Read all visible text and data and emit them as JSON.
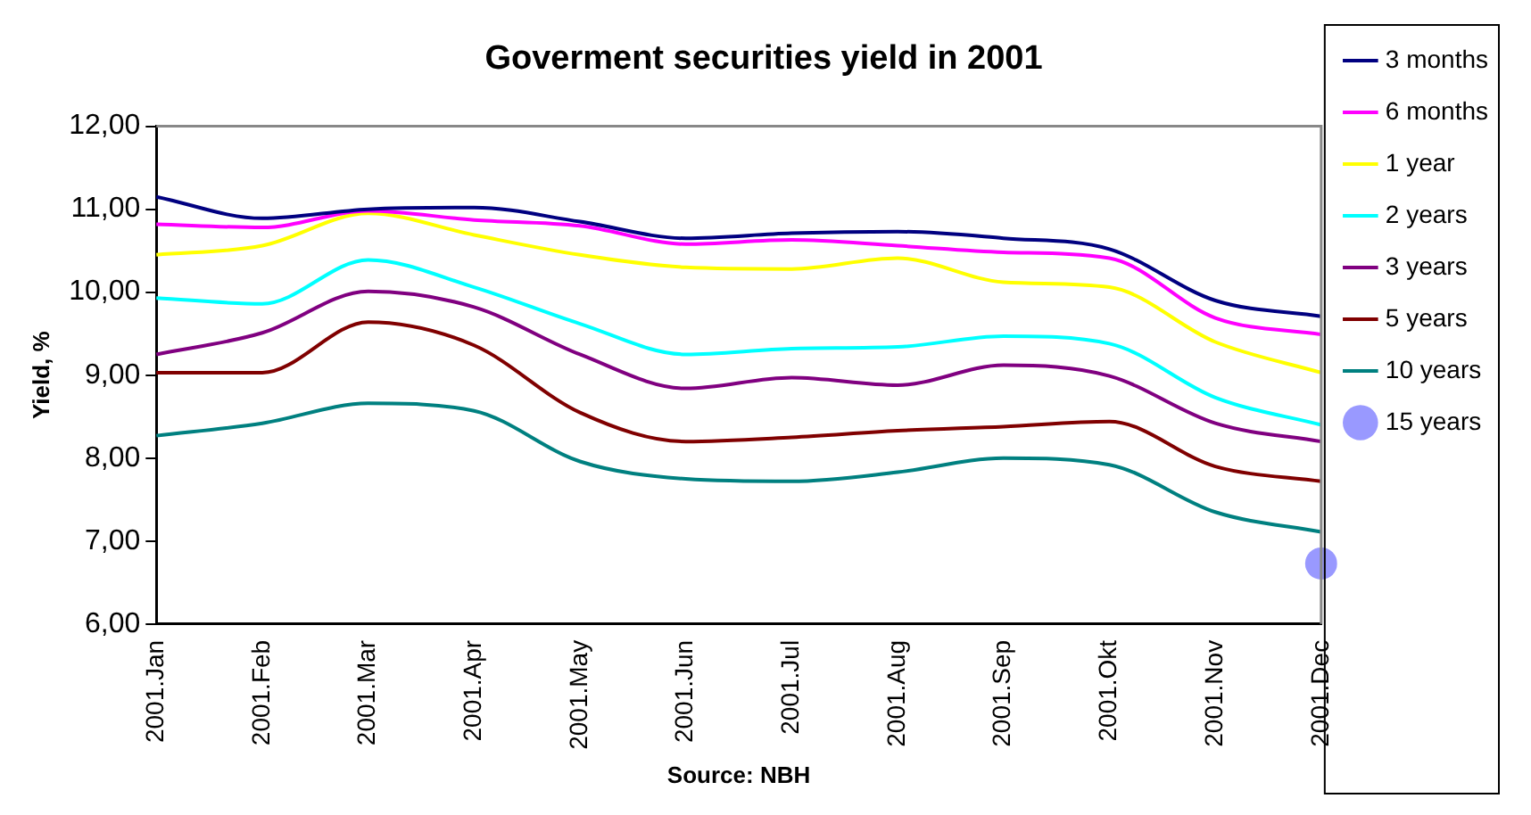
{
  "chart_data": {
    "type": "line",
    "title": "Goverment securities yield in 2001",
    "ylabel": "Yield, %",
    "annotations": [
      "Source: NBH"
    ],
    "categories": [
      "2001.Jan",
      "2001.Feb",
      "2001.Mar",
      "2001.Apr",
      "2001.May",
      "2001.Jun",
      "2001.Jul",
      "2001.Aug",
      "2001.Sep",
      "2001.Okt",
      "2001.Nov",
      "2001.Dec"
    ],
    "ylim": [
      6,
      12
    ],
    "yticks": [
      {
        "value": 6,
        "label": "6,00"
      },
      {
        "value": 7,
        "label": "7,00"
      },
      {
        "value": 8,
        "label": "8,00"
      },
      {
        "value": 9,
        "label": "9,00"
      },
      {
        "value": 10,
        "label": "10,00"
      },
      {
        "value": 11,
        "label": "11,00"
      },
      {
        "value": 12,
        "label": "12,00"
      }
    ],
    "grid": false,
    "legend": "right",
    "series": [
      {
        "name": "3 months",
        "color": "#000080",
        "values": [
          11.15,
          10.89,
          11.0,
          11.02,
          10.85,
          10.65,
          10.71,
          10.73,
          10.65,
          10.52,
          9.9,
          9.71
        ]
      },
      {
        "name": "6 months",
        "color": "#ff00ff",
        "values": [
          10.82,
          10.78,
          10.98,
          10.87,
          10.8,
          10.58,
          10.63,
          10.56,
          10.48,
          10.41,
          9.69,
          9.49
        ]
      },
      {
        "name": "1 year",
        "color": "#ffff00",
        "values": [
          10.45,
          10.56,
          10.95,
          10.69,
          10.45,
          10.3,
          10.28,
          10.41,
          10.12,
          10.06,
          9.4,
          9.03
        ]
      },
      {
        "name": "2 years",
        "color": "#00ffff",
        "values": [
          9.93,
          9.86,
          10.39,
          10.06,
          9.62,
          9.25,
          9.32,
          9.34,
          9.47,
          9.38,
          8.73,
          8.4
        ]
      },
      {
        "name": "3 years",
        "color": "#800080",
        "values": [
          9.25,
          9.51,
          10.01,
          9.82,
          9.25,
          8.84,
          8.97,
          8.88,
          9.12,
          8.99,
          8.42,
          8.2
        ]
      },
      {
        "name": "5 years",
        "color": "#800000",
        "values": [
          9.03,
          9.03,
          9.64,
          9.36,
          8.55,
          8.2,
          8.25,
          8.33,
          8.38,
          8.44,
          7.9,
          7.72
        ]
      },
      {
        "name": "10 years",
        "color": "#008080",
        "values": [
          8.27,
          8.42,
          8.66,
          8.57,
          7.96,
          7.75,
          7.72,
          7.83,
          8.0,
          7.92,
          7.35,
          7.11
        ]
      },
      {
        "name": "15 years",
        "type": "scatter",
        "color": "#9999ff",
        "values": [
          null,
          null,
          null,
          null,
          null,
          null,
          null,
          null,
          null,
          null,
          null,
          6.73
        ]
      }
    ]
  }
}
